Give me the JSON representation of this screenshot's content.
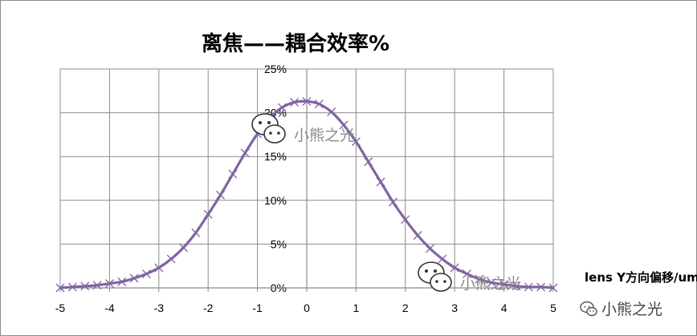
{
  "chart_data": {
    "type": "line",
    "title": "离焦——耦合效率%",
    "xlabel": "lens Y方向偏移/um",
    "ylabel": "",
    "xlim": [
      -5,
      5
    ],
    "ylim": [
      0,
      25
    ],
    "x_ticks": [
      "-5",
      "-4",
      "-3",
      "-2",
      "-1",
      "0",
      "1",
      "2",
      "3",
      "4",
      "5"
    ],
    "y_ticks": [
      "0%",
      "5%",
      "10%",
      "15%",
      "20%",
      "25%"
    ],
    "grid": true,
    "legend": "none",
    "series": [
      {
        "color": "#8064a2",
        "marker": "x",
        "x": [
          -5,
          -4.75,
          -4.5,
          -4.25,
          -4,
          -3.75,
          -3.5,
          -3.25,
          -3,
          -2.75,
          -2.5,
          -2.25,
          -2,
          -1.75,
          -1.5,
          -1.25,
          -1,
          -0.75,
          -0.5,
          -0.25,
          0,
          0.25,
          0.5,
          0.75,
          1,
          1.25,
          1.5,
          1.75,
          2,
          2.25,
          2.5,
          2.75,
          3,
          3.25,
          3.5,
          3.75,
          4,
          4.25,
          4.5,
          4.75,
          5
        ],
        "values": [
          0.0,
          0.1,
          0.2,
          0.3,
          0.5,
          0.7,
          1.1,
          1.6,
          2.3,
          3.3,
          4.6,
          6.3,
          8.4,
          10.6,
          13.0,
          15.4,
          17.6,
          19.4,
          20.6,
          21.2,
          21.3,
          21.0,
          20.1,
          18.6,
          16.7,
          14.4,
          12.1,
          9.8,
          7.8,
          6.0,
          4.5,
          3.3,
          2.3,
          1.6,
          1.0,
          0.6,
          0.4,
          0.2,
          0.1,
          0.1,
          0.0
        ]
      }
    ]
  },
  "watermarks": {
    "overlay_text": "小熊之光",
    "corner_text": "小熊之光",
    "icon": "wechat-icon"
  }
}
